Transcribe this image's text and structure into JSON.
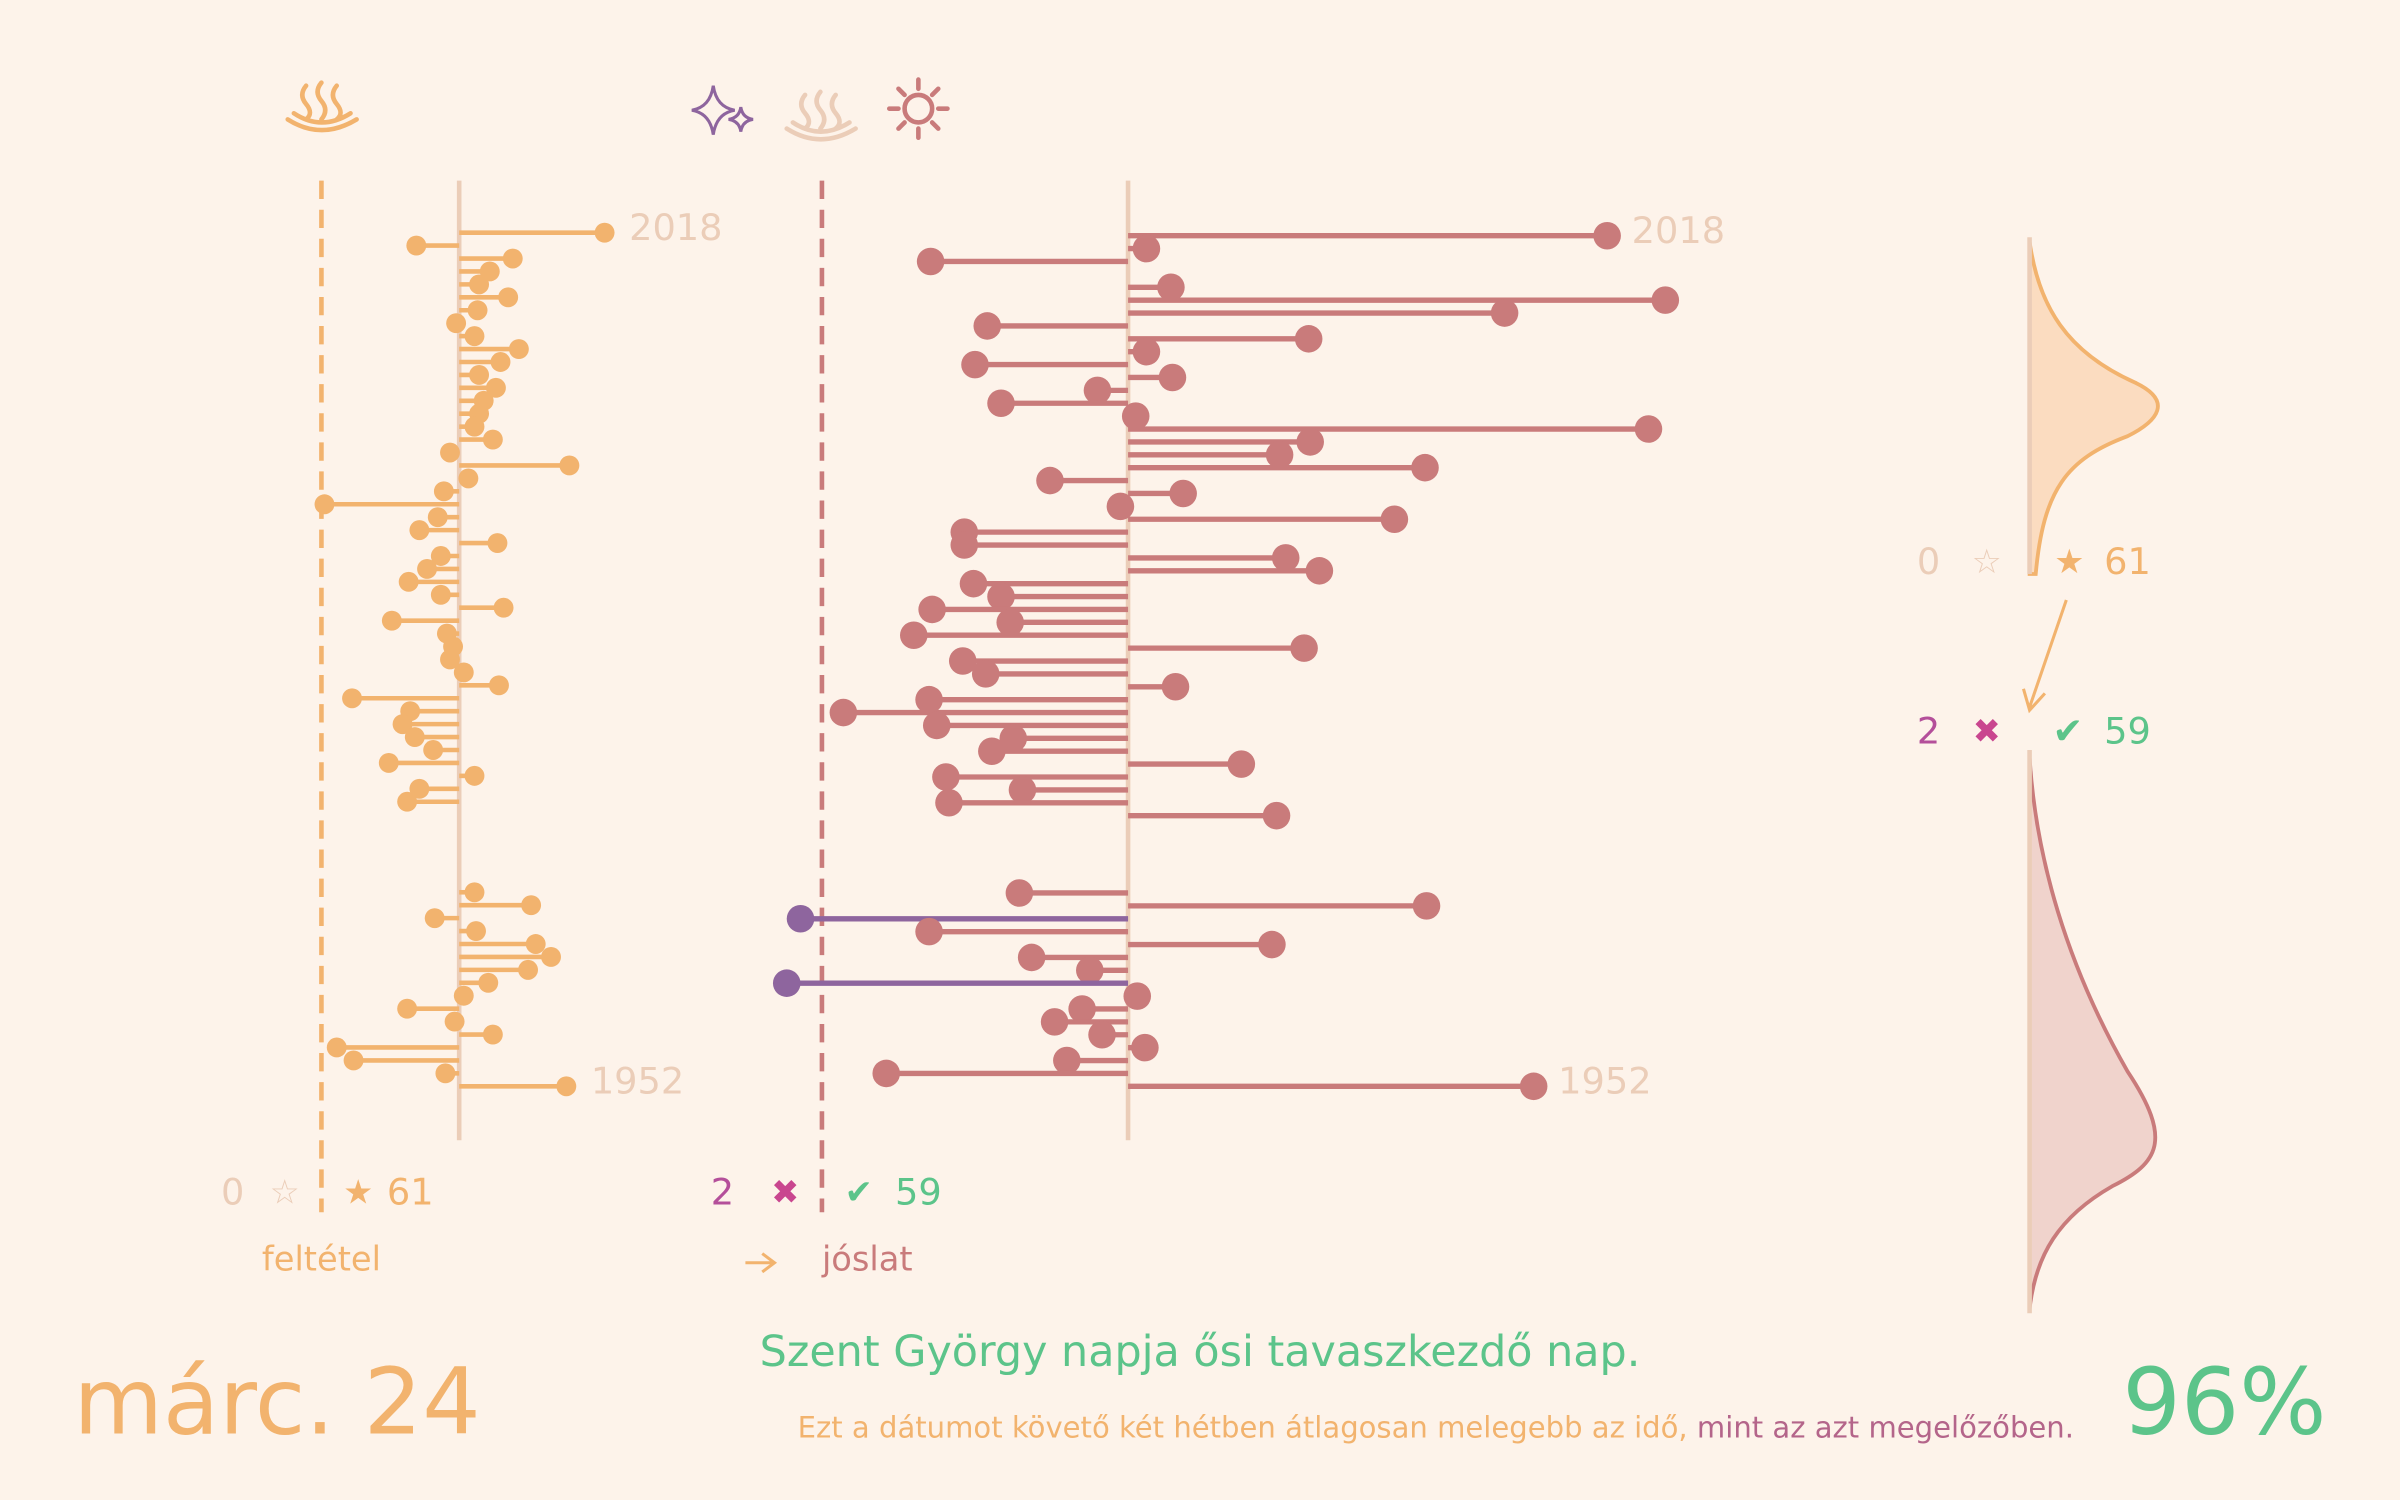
{
  "chart_data": [
    {
      "type": "lollipop",
      "label": "feltétel",
      "color": "#f2b36e",
      "miss_color": "#8e659e",
      "threshold": -90,
      "counts": {
        "miss": 0,
        "hit": 61
      },
      "categories": [
        "2018",
        null,
        null,
        null,
        null,
        null,
        null,
        null,
        null,
        null,
        null,
        null,
        null,
        null,
        null,
        null,
        null,
        null,
        null,
        null,
        null,
        null,
        null,
        null,
        null,
        null,
        null,
        null,
        null,
        null,
        null,
        null,
        null,
        null,
        null,
        null,
        null,
        null,
        null,
        null,
        null,
        null,
        null,
        null,
        null,
        null,
        null,
        null,
        null,
        null,
        null,
        null,
        null,
        null,
        null,
        null,
        null,
        null,
        null,
        null,
        null,
        null,
        null,
        null,
        null,
        null,
        "1952"
      ],
      "values": [
        95,
        -28,
        35,
        20,
        13,
        32,
        12,
        -2,
        10,
        39,
        27,
        13,
        24,
        16,
        13,
        10,
        22,
        -6,
        72,
        6,
        -10,
        -88,
        -14,
        -26,
        25,
        -12,
        -21,
        -33,
        -12,
        29,
        -44,
        -8,
        -4,
        -6,
        3,
        26,
        -70,
        -32,
        -37,
        -29,
        -17,
        -46,
        10,
        -26,
        -34,
        null,
        null,
        null,
        null,
        null,
        null,
        10,
        47,
        -16,
        11,
        50,
        60,
        45,
        19,
        3,
        -34,
        -3,
        22,
        -80,
        -69,
        -9,
        70
      ]
    },
    {
      "type": "lollipop",
      "label": "jóslat",
      "color": "#c97b7b",
      "miss_color": "#8e659e",
      "threshold": -200,
      "counts": {
        "miss": 2,
        "hit": 59
      },
      "categories": [
        "2018",
        null,
        null,
        null,
        null,
        null,
        null,
        null,
        null,
        null,
        null,
        null,
        null,
        null,
        null,
        null,
        null,
        null,
        null,
        null,
        null,
        null,
        null,
        null,
        null,
        null,
        null,
        null,
        null,
        null,
        null,
        null,
        null,
        null,
        null,
        null,
        null,
        null,
        null,
        null,
        null,
        null,
        null,
        null,
        null,
        null,
        null,
        null,
        null,
        null,
        null,
        null,
        null,
        null,
        null,
        null,
        null,
        null,
        null,
        null,
        null,
        null,
        null,
        null,
        null,
        null,
        "1952"
      ],
      "values": [
        313,
        12,
        -129,
        null,
        28,
        351,
        246,
        -92,
        118,
        12,
        -100,
        29,
        -20,
        -83,
        5,
        340,
        119,
        99,
        194,
        -51,
        36,
        -5,
        174,
        -107,
        -107,
        103,
        125,
        -101,
        -83,
        -128,
        -77,
        -140,
        115,
        -108,
        -93,
        31,
        -130,
        -186,
        -125,
        -75,
        -89,
        74,
        -119,
        -69,
        -117,
        97,
        null,
        null,
        null,
        null,
        null,
        -71,
        195,
        -214,
        -130,
        94,
        -63,
        -25,
        -223,
        6,
        -30,
        -48,
        -17,
        11,
        -40,
        -158,
        265
      ]
    }
  ],
  "footer": {
    "date": "márc. 24",
    "headline": "Szent György napja ősi tavaszkezdő nap.",
    "note": [
      "Ezt a dátumot követő két hétben átlagosan melegebb az idő,",
      "mint az azt megelőzőben."
    ],
    "score": "96%"
  }
}
